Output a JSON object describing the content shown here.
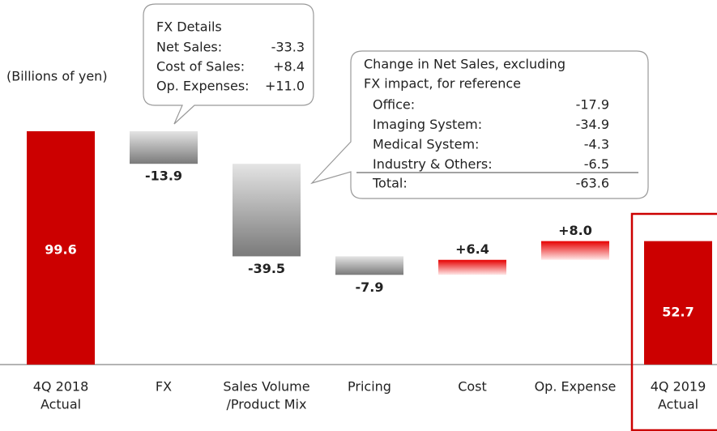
{
  "chart_data": {
    "type": "waterfall",
    "unit_label": "(Billions of yen)",
    "categories": [
      [
        "4Q 2018",
        "Actual"
      ],
      [
        "FX"
      ],
      [
        "Sales Volume",
        "/Product Mix"
      ],
      [
        "Pricing"
      ],
      [
        "Cost"
      ],
      [
        "Op. Expense"
      ],
      [
        "4Q 2019",
        "Actual"
      ]
    ],
    "kinds": [
      "total",
      "change",
      "change",
      "change",
      "change",
      "change",
      "total"
    ],
    "values": [
      99.6,
      -13.9,
      -39.5,
      -7.9,
      6.4,
      8.0,
      52.7
    ],
    "value_labels": [
      "99.6",
      "-13.9",
      "-39.5",
      "-7.9",
      "+6.4",
      "+8.0",
      "52.7"
    ],
    "colors": {
      "total": "#cc0000",
      "decrease": "#7a7a7a",
      "increase": "#e60000"
    },
    "highlight_category": 6,
    "fx_details": {
      "title": "FX Details",
      "rows": [
        [
          "Net Sales:",
          "-33.3"
        ],
        [
          "Cost of Sales:",
          "+8.4"
        ],
        [
          "Op. Expenses:",
          "+11.0"
        ]
      ]
    },
    "reference": {
      "title": [
        "Change in Net Sales, excluding",
        "FX impact, for reference"
      ],
      "rows": [
        [
          "Office:",
          "-17.9"
        ],
        [
          "Imaging System:",
          "-34.9"
        ],
        [
          "Medical System:",
          "-4.3"
        ],
        [
          "Industry & Others:",
          "-6.5"
        ]
      ],
      "total": [
        "Total:",
        "-63.6"
      ]
    }
  }
}
